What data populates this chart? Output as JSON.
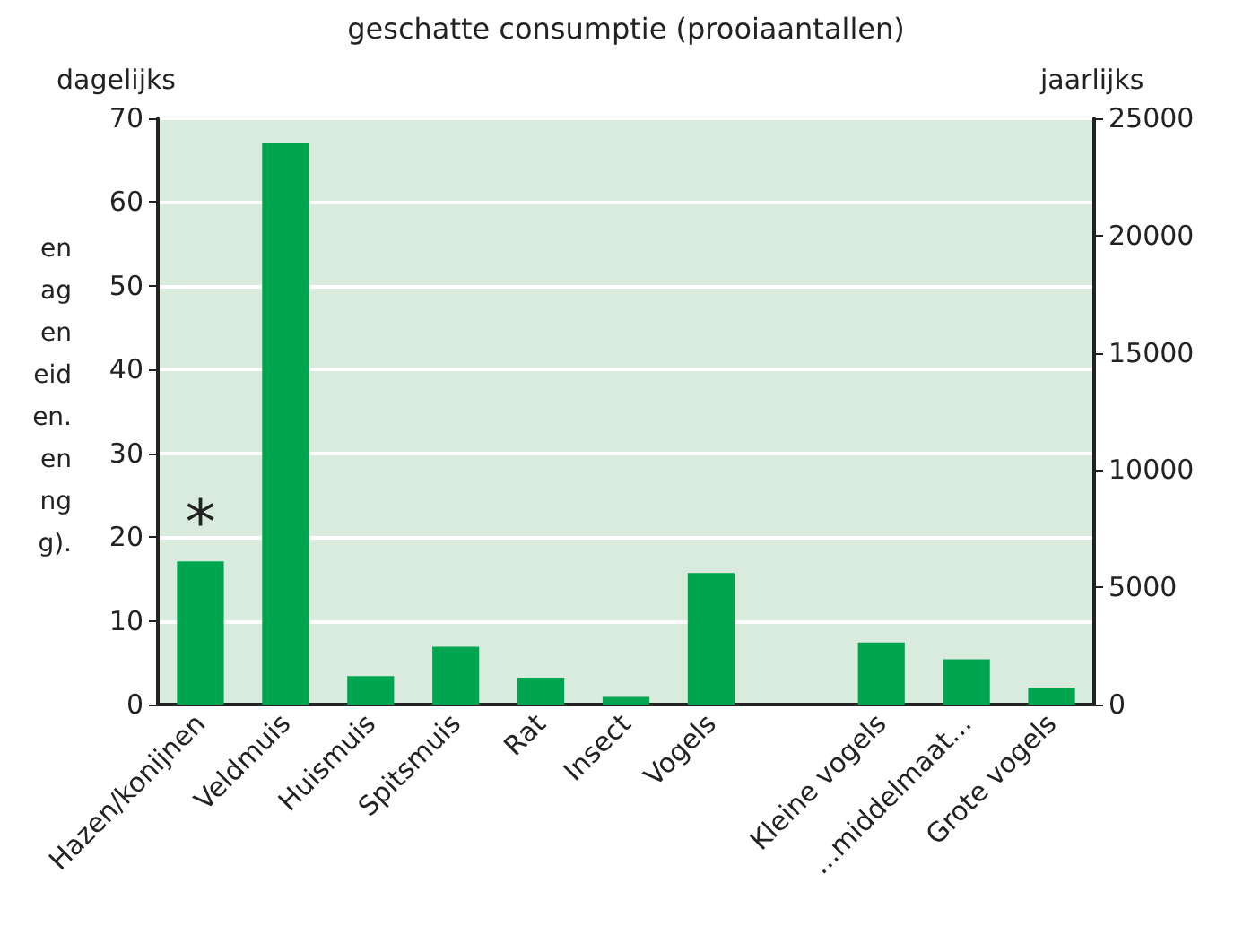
{
  "chart_data": {
    "type": "bar",
    "title": "geschatte consumptie (prooiaantallen)",
    "ylabel": "dagelijks",
    "y2label": "jaarlijks",
    "categories": [
      "Hazen/konijnen",
      "Veldmuis",
      "Huismuis",
      "Spitsmuis",
      "Rat",
      "Insect",
      "Vogels",
      null,
      "Kleine vogels",
      "...middelmaat...",
      "Grote vogels"
    ],
    "values": [
      17.1,
      67,
      3.4,
      6.9,
      3.2,
      0.9,
      15.7,
      null,
      7.4,
      5.4,
      2.0
    ],
    "color": "#00a550",
    "ylim": [
      0,
      70
    ],
    "yticks": [
      0,
      10,
      20,
      30,
      40,
      50,
      60,
      70
    ],
    "y2lim": [
      0,
      25000
    ],
    "y2ticks": [
      0,
      5000,
      10000,
      15000,
      20000,
      25000
    ],
    "grid": "y",
    "annotations": [
      "*",
      "en",
      "ag",
      "en",
      "eid",
      "en.",
      "en",
      "ng",
      "g)."
    ]
  }
}
